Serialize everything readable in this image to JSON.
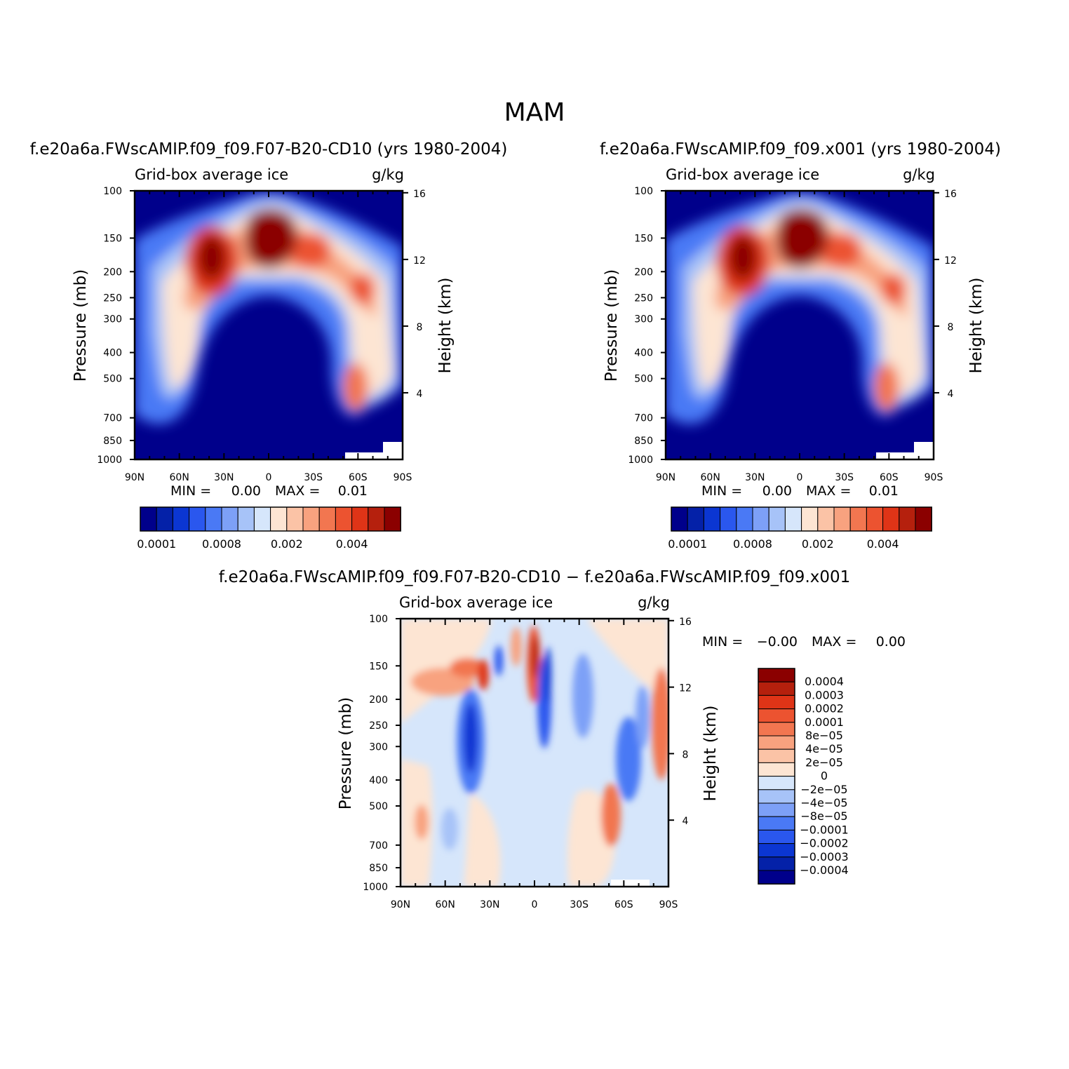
{
  "figure": {
    "title": "MAM"
  },
  "pressure_labels": [
    "100",
    "150",
    "200",
    "250",
    "300",
    "400",
    "500",
    "700",
    "850",
    "1000"
  ],
  "pressure_values": [
    100,
    150,
    200,
    250,
    300,
    400,
    500,
    700,
    850,
    1000
  ],
  "height_labels": [
    "16",
    "12",
    "8",
    "4"
  ],
  "height_values": [
    16,
    12,
    8,
    4
  ],
  "lat_labels": [
    "90N",
    "60N",
    "30N",
    "0",
    "30S",
    "60S",
    "90S"
  ],
  "lat_values": [
    90,
    60,
    30,
    0,
    -30,
    -60,
    -90
  ],
  "cbar_colors": [
    "#00008b",
    "#0421a8",
    "#0b36d2",
    "#2a57ee",
    "#4a79f5",
    "#7da0f7",
    "#a7c3f8",
    "#d6e6fb",
    "#fde5d3",
    "#fbc3a6",
    "#f8a27f",
    "#f27650",
    "#ec5330",
    "#df3417",
    "#b5200d",
    "#8b0000"
  ],
  "chart_data": [
    {
      "id": "panel-1",
      "type": "heatmap",
      "title": "f.e20a6a.FWscAMIP.f09_f09.F07-B20-CD10 (yrs 1980-2004)",
      "left_label": "Grid-box average ice",
      "right_label": "g/kg",
      "xlabel": "",
      "ylabel": "Pressure (mb)",
      "y2label": "Height (km)",
      "xlim": [
        90,
        -90
      ],
      "ylim": [
        1000,
        100
      ],
      "min_max": {
        "min_label": "MIN =",
        "min": "0.00",
        "max_label": "MAX =",
        "max": "0.01"
      },
      "colorbar_labels": [
        "0.0001",
        "0.0008",
        "0.002",
        "0.004"
      ]
    },
    {
      "id": "panel-2",
      "type": "heatmap",
      "title": "f.e20a6a.FWscAMIP.f09_f09.x001 (yrs 1980-2004)",
      "left_label": "Grid-box average ice",
      "right_label": "g/kg",
      "xlabel": "",
      "ylabel": "Pressure (mb)",
      "y2label": "Height (km)",
      "xlim": [
        90,
        -90
      ],
      "ylim": [
        1000,
        100
      ],
      "min_max": {
        "min_label": "MIN =",
        "min": "0.00",
        "max_label": "MAX =",
        "max": "0.01"
      },
      "colorbar_labels": [
        "0.0001",
        "0.0008",
        "0.002",
        "0.004"
      ]
    },
    {
      "id": "panel-3",
      "type": "heatmap",
      "title": "f.e20a6a.FWscAMIP.f09_f09.F07-B20-CD10 − f.e20a6a.FWscAMIP.f09_f09.x001",
      "left_label": "Grid-box average ice",
      "right_label": "g/kg",
      "xlabel": "",
      "ylabel": "Pressure (mb)",
      "y2label": "Height (km)",
      "xlim": [
        90,
        -90
      ],
      "ylim": [
        1000,
        100
      ],
      "min_max": {
        "min_label": "MIN =",
        "min": "−0.00",
        "max_label": "MAX =",
        "max": "0.00"
      },
      "colorbar_labels": [
        "0.0004",
        "0.0003",
        "0.0002",
        "0.0001",
        "8e−05",
        "4e−05",
        "2e−05",
        "0",
        "−2e−05",
        "−4e−05",
        "−8e−05",
        "−0.0001",
        "−0.0002",
        "−0.0003",
        "−0.0004"
      ]
    }
  ]
}
